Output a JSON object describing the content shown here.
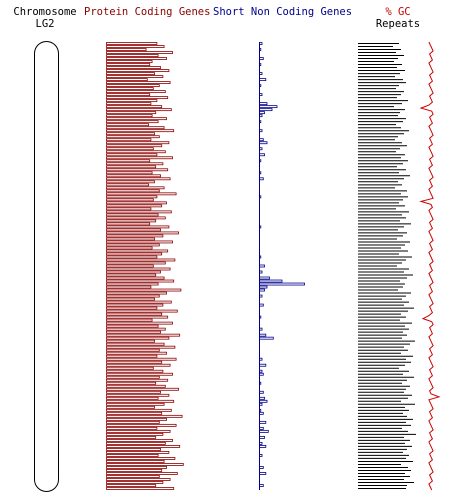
{
  "headers": {
    "chromosome": "Chromosome",
    "chromosome_name": "LG2",
    "protein_coding": "Protein Coding Genes",
    "short_non_coding": "Short Non Coding Genes",
    "gc_percent": "% GC",
    "repeats": "Repeats"
  },
  "colors": {
    "protein_coding": "#8b0000",
    "short_non_coding": "#00008b",
    "gc": "#cc0000",
    "repeats": "#000000",
    "chromosome_outline": "#000000"
  },
  "chart_data": {
    "type": "bar",
    "bins": 149,
    "series": [
      {
        "name": "Protein Coding Genes",
        "values": [
          42,
          48,
          33,
          55,
          43,
          50,
          38,
          36,
          45,
          52,
          40,
          47,
          34,
          53,
          44,
          39,
          49,
          36,
          51,
          42,
          37,
          46,
          54,
          41,
          38,
          50,
          43,
          35,
          48,
          56,
          40,
          44,
          37,
          52,
          46,
          39,
          49,
          42,
          55,
          36,
          47,
          41,
          51,
          38,
          45,
          53,
          40,
          35,
          48,
          44,
          58,
          42,
          39,
          50,
          46,
          37,
          54,
          43,
          49,
          41,
          36,
          52,
          45,
          60,
          47,
          40,
          55,
          44,
          38,
          51,
          46,
          42,
          57,
          49,
          39,
          53,
          45,
          41,
          48,
          56,
          43,
          37,
          62,
          50,
          44,
          40,
          54,
          47,
          42,
          59,
          46,
          51,
          38,
          55,
          43,
          49,
          45,
          61,
          52,
          40,
          48,
          57,
          44,
          50,
          42,
          58,
          46,
          53,
          39,
          47,
          55,
          44,
          51,
          41,
          49,
          60,
          45,
          52,
          43,
          56,
          48,
          40,
          54,
          46,
          63,
          50,
          44,
          58,
          42,
          53,
          47,
          41,
          55,
          49,
          61,
          45,
          52,
          43,
          57,
          48,
          64,
          50,
          46,
          59,
          44,
          53,
          47,
          41,
          56
        ]
      },
      {
        "name": "Short Non Coding Genes",
        "values": [
          2,
          0,
          1,
          0,
          0,
          3,
          0,
          1,
          0,
          0,
          2,
          0,
          5,
          0,
          1,
          0,
          0,
          2,
          0,
          0,
          6,
          14,
          10,
          4,
          2,
          0,
          1,
          0,
          0,
          2,
          0,
          0,
          3,
          6,
          0,
          2,
          0,
          4,
          0,
          1,
          0,
          0,
          0,
          1,
          0,
          3,
          0,
          0,
          0,
          0,
          0,
          1,
          0,
          0,
          0,
          0,
          0,
          0,
          0,
          0,
          0,
          1,
          0,
          0,
          0,
          0,
          0,
          0,
          0,
          0,
          0,
          1,
          0,
          0,
          4,
          0,
          2,
          0,
          8,
          18,
          36,
          6,
          4,
          0,
          2,
          0,
          0,
          3,
          0,
          0,
          0,
          1,
          0,
          0,
          0,
          2,
          0,
          5,
          11,
          0,
          0,
          0,
          0,
          0,
          0,
          2,
          0,
          5,
          0,
          2,
          3,
          0,
          0,
          1,
          0,
          0,
          3,
          0,
          4,
          6,
          2,
          0,
          1,
          3,
          0,
          0,
          5,
          0,
          3,
          7,
          0,
          4,
          0,
          2,
          5,
          0,
          0,
          2,
          0,
          0,
          0,
          3,
          0,
          5,
          0,
          0,
          0,
          3,
          0
        ]
      },
      {
        "name": "Repeats",
        "values": [
          41,
          35,
          43,
          38,
          46,
          40,
          36,
          44,
          39,
          47,
          42,
          37,
          45,
          48,
          41,
          38,
          46,
          43,
          39,
          50,
          44,
          36,
          47,
          42,
          40,
          48,
          45,
          38,
          43,
          51,
          46,
          40,
          37,
          44,
          49,
          42,
          38,
          47,
          43,
          50,
          45,
          39,
          48,
          41,
          52,
          46,
          40,
          44,
          37,
          49,
          43,
          50,
          45,
          41,
          47,
          38,
          51,
          44,
          48,
          42,
          53,
          46,
          40,
          49,
          45,
          39,
          52,
          47,
          43,
          50,
          41,
          54,
          48,
          44,
          39,
          51,
          46,
          55,
          49,
          42,
          47,
          45,
          40,
          53,
          48,
          44,
          51,
          46,
          56,
          50,
          43,
          48,
          42,
          54,
          47,
          51,
          45,
          49,
          44,
          57,
          52,
          46,
          50,
          43,
          55,
          48,
          53,
          47,
          41,
          51,
          45,
          56,
          49,
          44,
          52,
          48,
          46,
          54,
          50,
          43,
          57,
          47,
          51,
          45,
          49,
          55,
          48,
          53,
          44,
          50,
          58,
          46,
          52,
          47,
          54,
          49,
          45,
          51,
          48,
          55,
          43,
          50,
          53,
          47,
          52,
          46,
          56,
          49,
          48
        ]
      }
    ]
  }
}
